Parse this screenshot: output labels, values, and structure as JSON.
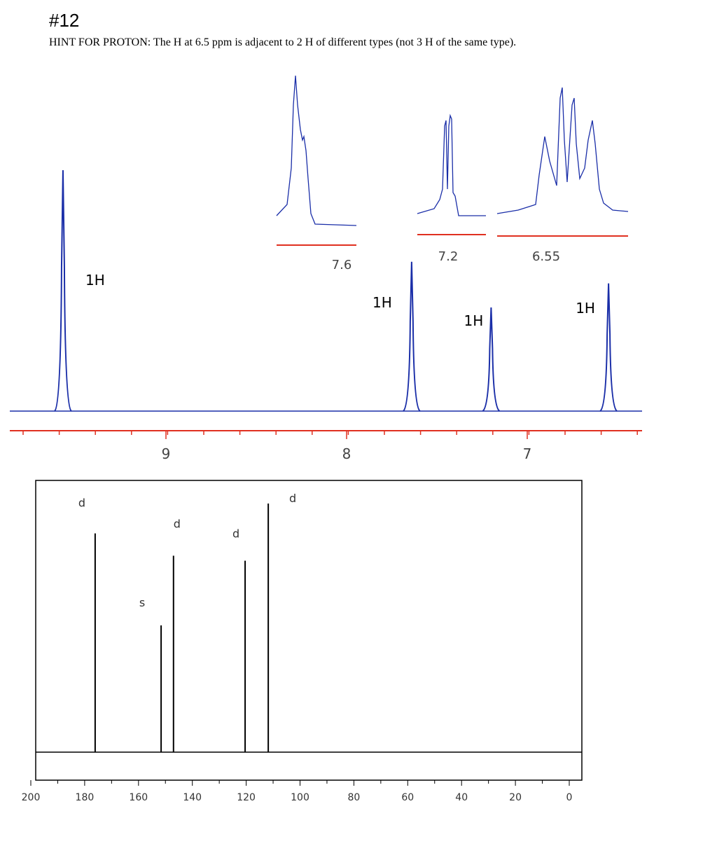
{
  "header": {
    "title": "#12",
    "hint": "HINT FOR PROTON: The H at 6.5 ppm is adjacent to 2 H of different types (not 3 H of the same type)."
  },
  "proton_spectrum": {
    "xticks": [
      9,
      8,
      7
    ],
    "peaks": [
      {
        "ppm": 9.57,
        "intensity": 100,
        "integration": "1H"
      },
      {
        "ppm": 7.64,
        "intensity": 62,
        "integration": "1H"
      },
      {
        "ppm": 7.2,
        "intensity": 43,
        "integration": "1H"
      },
      {
        "ppm": 6.55,
        "intensity": 53,
        "integration": "1H"
      }
    ],
    "insets": [
      {
        "label": "7.6"
      },
      {
        "label": "7.2"
      },
      {
        "label": "6.55"
      }
    ]
  },
  "carbon_spectrum": {
    "xlim": [
      200,
      0
    ],
    "xticks": [
      200,
      180,
      160,
      140,
      120,
      100,
      80,
      60,
      40,
      20,
      0
    ],
    "peaks": [
      {
        "ppm": 176.1,
        "intensity": 88,
        "multiplicity": "d"
      },
      {
        "ppm": 151.6,
        "intensity": 51,
        "multiplicity": "s"
      },
      {
        "ppm": 147,
        "intensity": 79,
        "multiplicity": "d"
      },
      {
        "ppm": 120.4,
        "intensity": 77,
        "multiplicity": "d"
      },
      {
        "ppm": 111.8,
        "intensity": 100,
        "multiplicity": "d"
      }
    ]
  }
}
